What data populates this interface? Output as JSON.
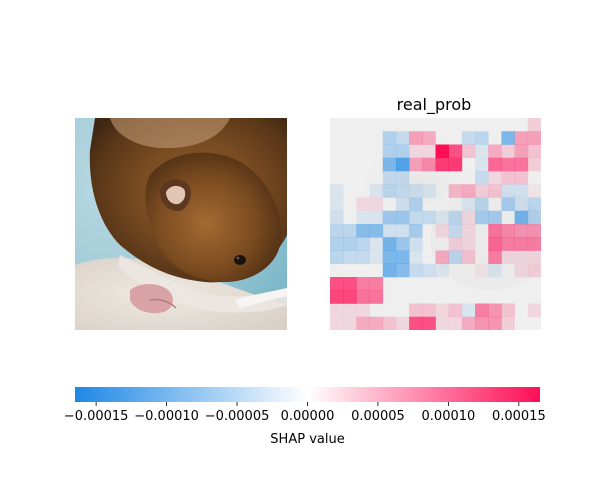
{
  "chart_data": {
    "type": "heatmap",
    "panels": [
      {
        "kind": "image",
        "title": "",
        "subject": "hamster"
      },
      {
        "kind": "shap-heatmap",
        "title": "real_prob",
        "grid_rows": 16,
        "grid_cols": 16,
        "values": [
          [
            0,
            0,
            0,
            0,
            0,
            0,
            0,
            0,
            0,
            0,
            0,
            0,
            0,
            0,
            0,
            0.15
          ],
          [
            0,
            0,
            0,
            0,
            -0.3,
            -0.2,
            0.35,
            0.3,
            0,
            0,
            -0.2,
            -0.25,
            0,
            -0.55,
            0.35,
            0.35
          ],
          [
            0,
            0,
            0,
            0,
            -0.3,
            -0.3,
            0.1,
            0.1,
            1.0,
            0.7,
            0.2,
            -0.1,
            0.3,
            0.15,
            0.35,
            0.2
          ],
          [
            0,
            0,
            0,
            0,
            -0.55,
            -0.75,
            0.35,
            0.45,
            0.8,
            0.8,
            0,
            -0.1,
            0.6,
            0.55,
            0.55,
            0.15
          ],
          [
            0,
            0,
            0,
            0,
            -0.2,
            -0.2,
            0,
            0,
            0,
            0,
            0,
            -0.2,
            0.1,
            0.2,
            0.2,
            0
          ],
          [
            -0.1,
            0,
            0,
            -0.1,
            -0.25,
            -0.2,
            -0.15,
            -0.1,
            0,
            0.25,
            0.3,
            0.15,
            0.2,
            -0.15,
            -0.15,
            0.05
          ],
          [
            -0.1,
            0,
            0.1,
            0.1,
            0,
            -0.15,
            -0.3,
            0,
            0,
            0,
            -0.1,
            -0.25,
            0,
            -0.35,
            -0.15,
            -0.25
          ],
          [
            -0.15,
            0,
            -0.1,
            -0.1,
            -0.4,
            -0.4,
            -0.2,
            -0.2,
            -0.1,
            -0.25,
            0.1,
            -0.35,
            -0.35,
            0,
            -0.6,
            -0.3
          ],
          [
            -0.25,
            -0.25,
            -0.5,
            -0.5,
            -0.15,
            -0.15,
            -0.35,
            0,
            0.1,
            -0.2,
            0.1,
            0,
            0.55,
            0.45,
            0.4,
            0.4
          ],
          [
            -0.3,
            -0.3,
            -0.25,
            -0.1,
            -0.6,
            -0.4,
            -0.15,
            0,
            0,
            0.15,
            0.1,
            0,
            0.6,
            0.5,
            0.5,
            0.5
          ],
          [
            -0.25,
            -0.2,
            -0.2,
            -0.1,
            -0.55,
            -0.55,
            -0.1,
            0,
            0.3,
            -0.25,
            0.2,
            0,
            0.5,
            0.1,
            0.1,
            0.1
          ],
          [
            0,
            0,
            0,
            0,
            -0.6,
            -0.5,
            -0.2,
            -0.15,
            -0.1,
            0,
            0,
            0.05,
            -0.1,
            0,
            0.1,
            0.15
          ],
          [
            0.7,
            0.7,
            0.5,
            0.5,
            0,
            0,
            0,
            0,
            0,
            0,
            0,
            0,
            0,
            0,
            0,
            0
          ],
          [
            0.75,
            0.75,
            0.55,
            0.55,
            0,
            0,
            0,
            0,
            0,
            0,
            0,
            0,
            0,
            0,
            0,
            0
          ],
          [
            0.1,
            0.1,
            0.1,
            0,
            0,
            0,
            0.2,
            0.2,
            0.1,
            0.2,
            -0.1,
            0.5,
            0.4,
            0.2,
            0,
            0.1
          ],
          [
            0.1,
            0.1,
            0.3,
            0.3,
            0.2,
            0.1,
            0.7,
            0.7,
            0.1,
            0.1,
            0.3,
            0.4,
            0.4,
            0.15,
            0,
            0
          ]
        ]
      }
    ],
    "colorbar": {
      "label": "SHAP value",
      "range": [
        -0.000165,
        0.000165
      ],
      "ticks": [
        -0.00015,
        -0.0001,
        -5e-05,
        0.0,
        5e-05,
        0.0001,
        0.00015
      ],
      "tick_labels": [
        "−0.00015",
        "−0.00010",
        "−0.00005",
        "0.00000",
        "0.00005",
        "0.00010",
        "0.00015"
      ],
      "negative_color": "#1e88e5",
      "positive_color": "#ff0d57",
      "neutral_color": "#ffffff"
    }
  }
}
